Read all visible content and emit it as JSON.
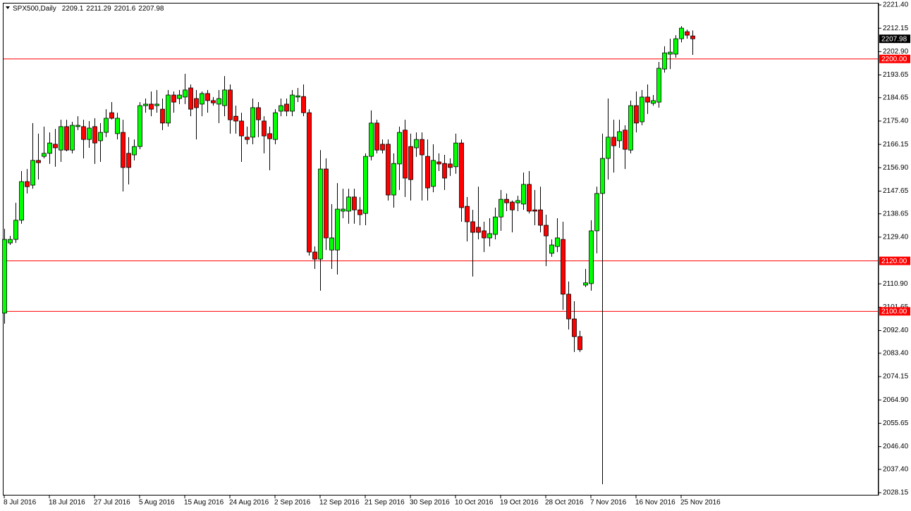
{
  "chart_data": {
    "type": "candlestick",
    "title": "SPX500,Daily",
    "up_color": "#00ff00",
    "down_color": "#ff0000",
    "level_color": "#ff0000",
    "ylim": [
      2028.15,
      2221.4
    ],
    "yticks": [
      {
        "value": 2221.4,
        "label": "2221.40"
      },
      2212.15,
      {
        "value": 2202.9,
        "label": "2202.90"
      },
      2193.65,
      2184.65,
      {
        "value": 2175.4,
        "label": "2175.40"
      },
      2166.15,
      {
        "value": 2156.9,
        "label": "2156.90"
      },
      2147.65,
      2138.65,
      {
        "value": 2129.4,
        "label": "2129.40"
      },
      {
        "value": 2110.9,
        "label": "2110.90"
      },
      2101.65,
      {
        "value": 2092.4,
        "label": "2092.40"
      },
      {
        "value": 2083.4,
        "label": "2083.40"
      },
      2074.15,
      {
        "value": 2064.9,
        "label": "2064.90"
      },
      2055.65,
      {
        "value": 2046.4,
        "label": "2046.40"
      },
      {
        "value": 2037.4,
        "label": "2037.40"
      },
      2028.15
    ],
    "levels": [
      {
        "value": 2200,
        "label": "2200.00"
      },
      {
        "value": 2120,
        "label": "2120.00"
      },
      {
        "value": 2100,
        "label": "2100.00"
      }
    ],
    "categories": [
      "8 Jul 2016",
      null,
      null,
      null,
      null,
      null,
      null,
      null,
      "18 Jul 2016",
      null,
      null,
      null,
      null,
      null,
      null,
      null,
      "27 Jul 2016",
      null,
      null,
      null,
      null,
      null,
      null,
      null,
      "5 Aug 2016",
      null,
      null,
      null,
      null,
      null,
      null,
      null,
      "15 Aug 2016",
      null,
      null,
      null,
      null,
      null,
      null,
      null,
      "24 Aug 2016",
      null,
      null,
      null,
      null,
      null,
      null,
      null,
      "2 Sep 2016",
      null,
      null,
      null,
      null,
      null,
      null,
      null,
      "12 Sep 2016",
      null,
      null,
      null,
      null,
      null,
      null,
      null,
      "21 Sep 2016",
      null,
      null,
      null,
      null,
      null,
      null,
      null,
      "30 Sep 2016",
      null,
      null,
      null,
      null,
      null,
      null,
      null,
      "10 Oct 2016",
      null,
      null,
      null,
      null,
      null,
      null,
      null,
      "19 Oct 2016",
      null,
      null,
      null,
      null,
      null,
      null,
      null,
      "28 Oct 2016",
      null,
      null,
      null,
      null,
      null,
      null,
      null,
      "7 Nov 2016",
      null,
      null,
      null,
      null,
      null,
      null,
      null,
      "16 Nov 2016",
      null,
      null,
      null,
      null,
      null,
      null,
      null,
      "25 Nov 2016",
      null,
      null
    ],
    "open": [
      2099.3,
      2127.1,
      2128.5,
      2136.1,
      2151.4,
      2150.0,
      2159.8,
      2161.4,
      2162.6,
      2166.2,
      2163.9,
      2173.2,
      2163.9,
      2173.2,
      2173.2,
      2168.1,
      2173.2,
      2167.6,
      2170.9,
      2178.7,
      2170.4,
      2170.9,
      2162.6,
      2162.0,
      2165.3,
      2181.5,
      2182.1,
      2181.5,
      2180.1,
      2174.6,
      2185.7,
      2184.3,
      2184.9,
      2188.5,
      2184.3,
      2182.1,
      2186.3,
      2183.5,
      2182.1,
      2181.5,
      2187.7,
      2177.3,
      2175.4,
      2169.0,
      2169.0,
      2180.7,
      2175.4,
      2170.4,
      2168.1,
      2179.3,
      2182.1,
      2179.3,
      2184.9,
      2185.1,
      2178.7,
      2123.5,
      2120.7,
      2156.4,
      2124.3,
      2124.3,
      2139.7,
      2139.7,
      2145.3,
      2140.2,
      2138.8,
      2161.4,
      2174.6,
      2166.2,
      2166.2,
      2146.1,
      2158.4,
      2171.8,
      2165.3,
      2164.8,
      2168.1,
      2161.4,
      2149.5,
      2159.2,
      2158.6,
      2158.4,
      2157.3,
      2166.7,
      2141.6,
      2135.5,
      2133.3,
      2131.9,
      2129.1,
      2130.5,
      2137.4,
      2144.4,
      2143.3,
      2143.0,
      2142.5,
      2150.3,
      2140.2,
      2140.2,
      2134.1,
      2123.0,
      2125.7,
      2128.5,
      2106.8,
      2097.0,
      2090.0,
      2110.4,
      2111.0,
      2131.9,
      2146.7,
      2160.6,
      2169.0,
      2167.6,
      2171.8,
      2163.9,
      2181.5,
      2175.1,
      2184.9,
      2182.4,
      2182.9,
      2196.0,
      2201.9,
      2201.9,
      2208.0,
      2210.8,
      2209.1
    ],
    "high": [
      2132.7,
      2129.9,
      2143.0,
      2155.6,
      2156.4,
      2174.6,
      2170.4,
      2173.2,
      2170.9,
      2172.3,
      2175.9,
      2175.9,
      2175.1,
      2177.3,
      2175.9,
      2175.4,
      2176.5,
      2174.6,
      2180.1,
      2182.9,
      2178.7,
      2175.9,
      2169.0,
      2168.1,
      2182.9,
      2184.3,
      2187.1,
      2187.7,
      2184.3,
      2187.7,
      2187.1,
      2187.7,
      2194.1,
      2189.9,
      2187.7,
      2187.1,
      2187.7,
      2184.9,
      2187.7,
      2193.2,
      2189.9,
      2181.5,
      2178.7,
      2173.2,
      2184.3,
      2182.9,
      2177.3,
      2173.2,
      2180.1,
      2184.3,
      2184.3,
      2187.7,
      2188.5,
      2189.9,
      2180.1,
      2125.7,
      2163.9,
      2160.6,
      2142.5,
      2150.8,
      2148.6,
      2148.6,
      2148.6,
      2145.3,
      2162.6,
      2179.6,
      2175.9,
      2168.1,
      2168.1,
      2162.6,
      2173.2,
      2175.9,
      2170.4,
      2170.9,
      2170.9,
      2168.1,
      2166.2,
      2162.6,
      2162.0,
      2160.6,
      2170.4,
      2168.1,
      2145.3,
      2140.2,
      2149.4,
      2135.5,
      2136.9,
      2141.1,
      2148.1,
      2146.7,
      2143.9,
      2145.8,
      2155.0,
      2155.6,
      2148.1,
      2149.4,
      2138.3,
      2128.5,
      2136.9,
      2135.5,
      2111.8,
      2104.0,
      2092.3,
      2116.8,
      2136.1,
      2149.4,
      2170.4,
      2184.3,
      2175.9,
      2175.9,
      2173.7,
      2183.5,
      2187.1,
      2187.7,
      2189.9,
      2185.7,
      2198.8,
      2205.0,
      2208.0,
      2209.4,
      2213.0,
      2211.6,
      2211.29
    ],
    "low": [
      2095.1,
      2126.3,
      2127.1,
      2134.7,
      2146.7,
      2148.6,
      2152.2,
      2160.6,
      2158.4,
      2157.3,
      2159.2,
      2163.4,
      2162.6,
      2171.8,
      2160.6,
      2164.8,
      2158.4,
      2159.2,
      2169.0,
      2176.0,
      2168.1,
      2147.5,
      2150.3,
      2159.8,
      2164.2,
      2178.7,
      2177.3,
      2178.7,
      2171.8,
      2173.2,
      2178.7,
      2182.1,
      2182.1,
      2177.3,
      2168.1,
      2177.3,
      2178.7,
      2181.5,
      2174.6,
      2177.3,
      2170.4,
      2170.4,
      2159.2,
      2166.2,
      2166.2,
      2169.0,
      2162.6,
      2155.9,
      2166.2,
      2177.3,
      2177.3,
      2177.3,
      2182.9,
      2177.3,
      2122.1,
      2116.8,
      2108.2,
      2124.3,
      2116.8,
      2114.6,
      2136.9,
      2134.7,
      2134.7,
      2134.1,
      2134.1,
      2159.8,
      2162.6,
      2162.6,
      2143.9,
      2141.1,
      2148.1,
      2145.3,
      2143.9,
      2161.2,
      2143.9,
      2143.9,
      2147.2,
      2155.6,
      2148.1,
      2153.6,
      2154.5,
      2135.5,
      2127.7,
      2113.8,
      2128.5,
      2123.5,
      2125.7,
      2128.5,
      2131.9,
      2139.7,
      2131.3,
      2139.7,
      2140.2,
      2138.8,
      2134.1,
      2131.3,
      2117.9,
      2121.6,
      2123.5,
      2100.6,
      2092.8,
      2083.9,
      2083.9,
      2109.6,
      2108.2,
      2123.0,
      2031.5,
      2152.2,
      2155.0,
      2164.8,
      2156.4,
      2162.6,
      2170.9,
      2173.7,
      2178.2,
      2181.5,
      2180.7,
      2194.6,
      2196.0,
      2200.5,
      2206.6,
      2208.0,
      2201.6
    ],
    "close": [
      2128.5,
      2128.5,
      2136.1,
      2151.4,
      2149.4,
      2159.8,
      2158.9,
      2162.6,
      2166.7,
      2164.8,
      2173.2,
      2163.9,
      2173.7,
      2173.7,
      2168.1,
      2172.6,
      2166.7,
      2170.9,
      2176.5,
      2176.5,
      2176.5,
      2157.0,
      2157.0,
      2165.3,
      2181.5,
      2182.1,
      2180.1,
      2182.1,
      2174.6,
      2185.7,
      2182.9,
      2185.7,
      2187.7,
      2180.1,
      2180.7,
      2186.3,
      2183.5,
      2182.6,
      2184.3,
      2187.7,
      2175.9,
      2175.4,
      2169.5,
      2168.1,
      2180.7,
      2175.9,
      2169.5,
      2168.4,
      2178.7,
      2181.5,
      2179.3,
      2185.7,
      2185.4,
      2178.7,
      2123.5,
      2120.7,
      2156.4,
      2129.1,
      2129.1,
      2140.5,
      2140.5,
      2145.3,
      2140.2,
      2138.3,
      2161.4,
      2174.6,
      2163.9,
      2163.9,
      2146.1,
      2158.6,
      2170.9,
      2152.8,
      2152.2,
      2168.1,
      2162.0,
      2148.9,
      2159.8,
      2158.4,
      2152.8,
      2157.0,
      2166.7,
      2141.1,
      2135.5,
      2131.3,
      2131.3,
      2129.1,
      2130.8,
      2137.4,
      2144.4,
      2143.0,
      2140.2,
      2143.9,
      2150.3,
      2139.7,
      2139.7,
      2134.1,
      2129.9,
      2126.3,
      2129.1,
      2106.8,
      2097.0,
      2090.0,
      2084.8,
      2111.3,
      2131.9,
      2146.7,
      2160.6,
      2169.0,
      2165.6,
      2171.2,
      2164.2,
      2181.5,
      2174.6,
      2184.9,
      2182.9,
      2183.5,
      2196.3,
      2202.4,
      2202.7,
      2208.0,
      2212.2,
      2209.4,
      2207.98
    ]
  }
}
